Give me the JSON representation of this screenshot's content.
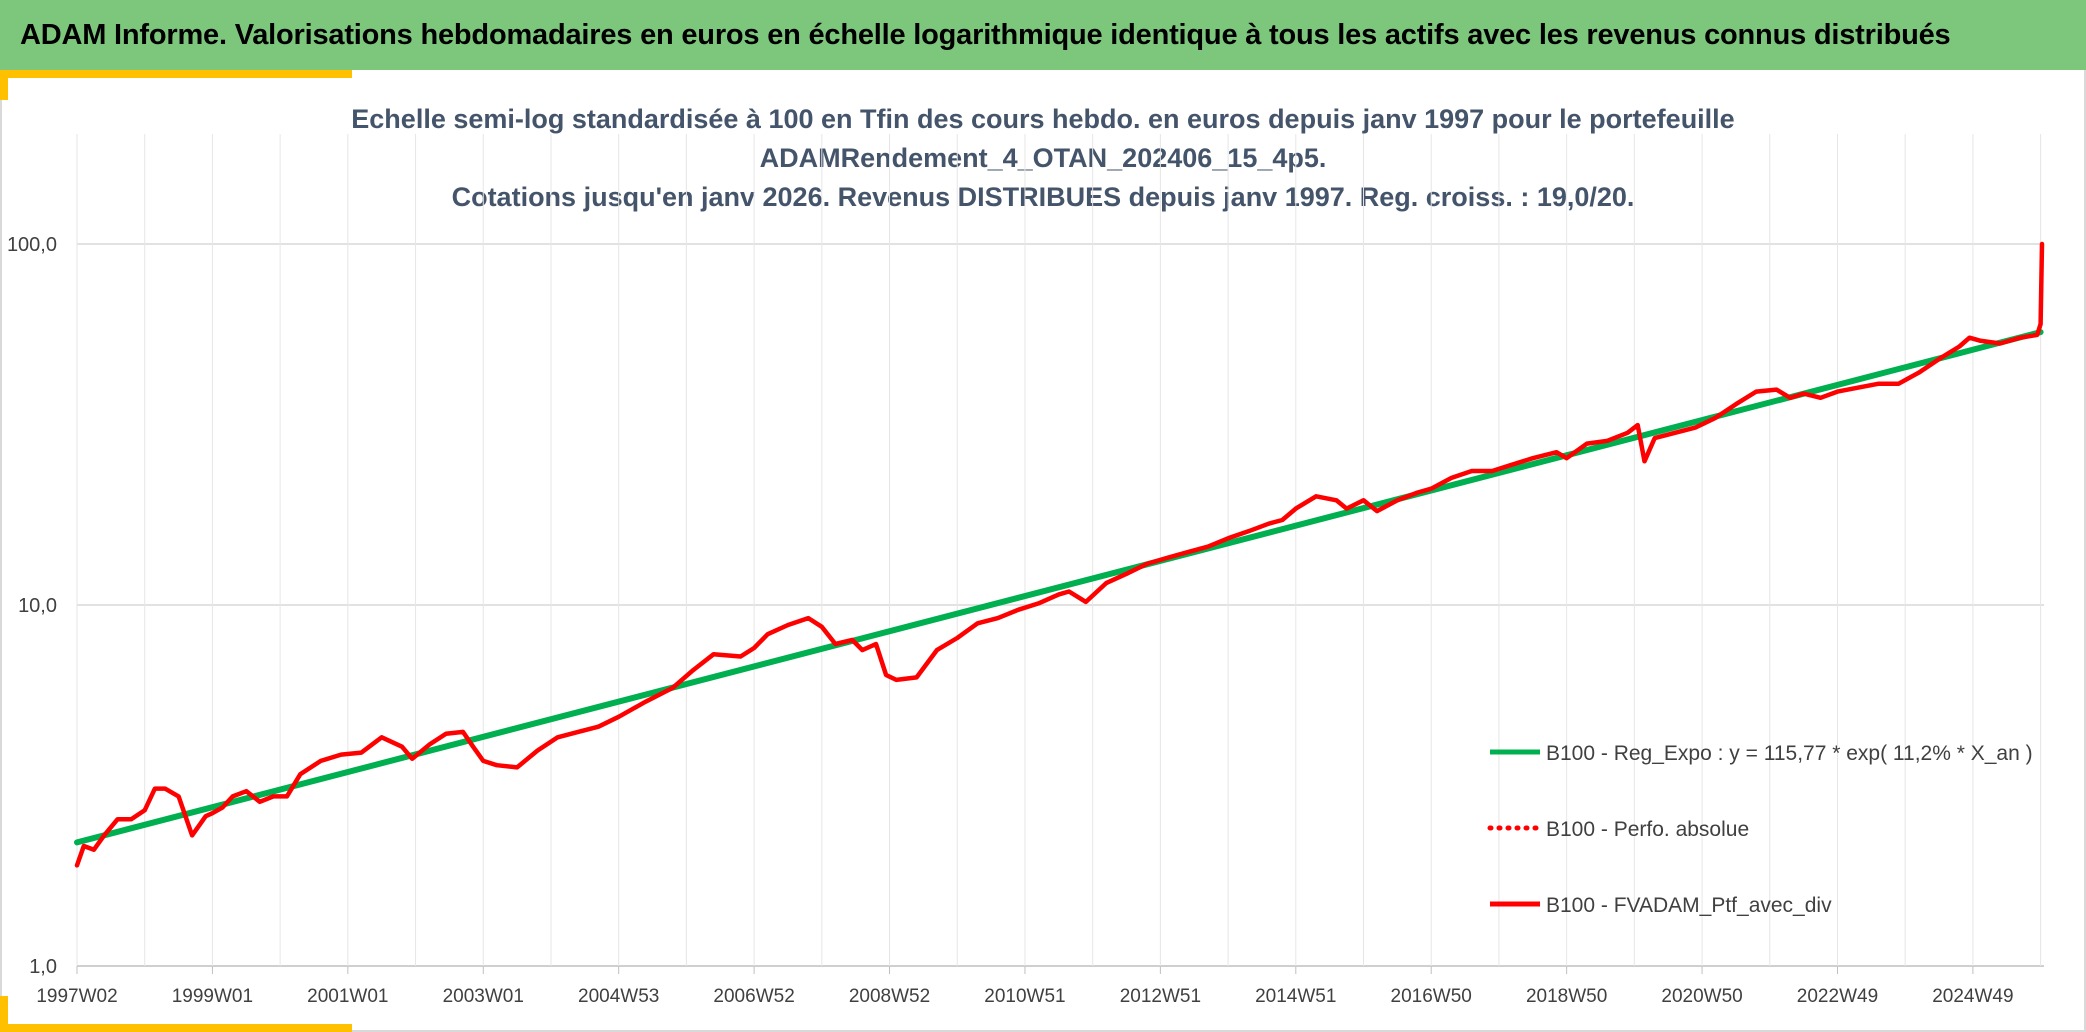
{
  "header": {
    "title": "ADAM Informe. Valorisations hebdomadaires en euros en échelle logarithmique identique à tous les actifs avec les revenus connus distribués"
  },
  "colors": {
    "banner": "#7dc77d",
    "accent": "#ffc000",
    "title_text": "#44546a",
    "regression": "#00b050",
    "portfolio": "#ff0000"
  },
  "chart_data": {
    "type": "line",
    "title_lines": [
      "Echelle semi-log standardisée à 100 en Tfin des cours hebdo. en euros depuis janv 1997 pour le portefeuille",
      "ADAMRendement_4_OTAN_202406_15_4p5.",
      "Cotations jusqu'en janv 2026. Revenus DISTRIBUES depuis janv 1997. Reg. croiss. : 19,0/20."
    ],
    "y_scale": "log",
    "ylim": [
      1,
      100
    ],
    "y_ticks": [
      {
        "value": 1,
        "label": "1,0"
      },
      {
        "value": 10,
        "label": "10,0"
      },
      {
        "value": 100,
        "label": "100,0"
      }
    ],
    "xlim": [
      1997.0,
      2026.05
    ],
    "x_ticks": [
      {
        "value": 1997.0,
        "label": "1997W02"
      },
      {
        "value": 1999.0,
        "label": "1999W01"
      },
      {
        "value": 2001.0,
        "label": "2001W01"
      },
      {
        "value": 2003.0,
        "label": "2003W01"
      },
      {
        "value": 2005.0,
        "label": "2004W53"
      },
      {
        "value": 2007.0,
        "label": "2006W52"
      },
      {
        "value": 2009.0,
        "label": "2008W52"
      },
      {
        "value": 2011.0,
        "label": "2010W51"
      },
      {
        "value": 2013.0,
        "label": "2012W51"
      },
      {
        "value": 2015.0,
        "label": "2014W51"
      },
      {
        "value": 2017.0,
        "label": "2016W50"
      },
      {
        "value": 2019.0,
        "label": "2018W50"
      },
      {
        "value": 2021.0,
        "label": "2020W50"
      },
      {
        "value": 2023.0,
        "label": "2022W49"
      },
      {
        "value": 2025.0,
        "label": "2024W49"
      }
    ],
    "grid": true,
    "legend_position": "right",
    "series": [
      {
        "name": "B100 - Reg_Expo : y = 115,77 * exp( 11,2% *  X_an )",
        "color": "#00b050",
        "style": "solid",
        "x": [
          1997.0,
          2026.0
        ],
        "y": [
          2.2,
          57.0
        ]
      },
      {
        "name": "B100 - Perfo. absolue",
        "color": "#ff0000",
        "style": "dotted",
        "x": [],
        "y": []
      },
      {
        "name": "B100 - FVADAM_Ptf_avec_div",
        "color": "#ff0000",
        "style": "solid",
        "x": [
          1997.0,
          1997.1,
          1997.25,
          1997.4,
          1997.6,
          1997.8,
          1998.0,
          1998.15,
          1998.3,
          1998.5,
          1998.7,
          1998.9,
          1999.0,
          1999.15,
          1999.3,
          1999.5,
          1999.7,
          1999.9,
          2000.1,
          2000.3,
          2000.6,
          2000.9,
          2001.2,
          2001.5,
          2001.8,
          2001.95,
          2002.2,
          2002.45,
          2002.7,
          2002.85,
          2003.0,
          2003.2,
          2003.5,
          2003.8,
          2004.1,
          2004.4,
          2004.7,
          2005.0,
          2005.4,
          2005.8,
          2006.1,
          2006.4,
          2006.8,
          2007.0,
          2007.2,
          2007.5,
          2007.8,
          2008.0,
          2008.2,
          2008.45,
          2008.6,
          2008.8,
          2008.95,
          2009.1,
          2009.4,
          2009.7,
          2010.0,
          2010.3,
          2010.6,
          2010.9,
          2011.2,
          2011.5,
          2011.65,
          2011.9,
          2012.2,
          2012.5,
          2012.8,
          2013.1,
          2013.4,
          2013.7,
          2014.0,
          2014.3,
          2014.6,
          2014.8,
          2015.0,
          2015.3,
          2015.6,
          2015.75,
          2016.0,
          2016.2,
          2016.5,
          2016.8,
          2017.0,
          2017.3,
          2017.6,
          2017.9,
          2018.2,
          2018.5,
          2018.85,
          2019.0,
          2019.3,
          2019.6,
          2019.9,
          2020.05,
          2020.15,
          2020.3,
          2020.6,
          2020.9,
          2021.2,
          2021.5,
          2021.8,
          2022.1,
          2022.3,
          2022.5,
          2022.75,
          2023.0,
          2023.3,
          2023.6,
          2023.9,
          2024.2,
          2024.5,
          2024.8,
          2024.95,
          2025.1,
          2025.4,
          2025.7,
          2025.95,
          2026.0,
          2026.02
        ],
        "y": [
          1.9,
          2.15,
          2.1,
          2.3,
          2.55,
          2.55,
          2.7,
          3.1,
          3.1,
          2.95,
          2.3,
          2.6,
          2.65,
          2.75,
          2.95,
          3.05,
          2.85,
          2.95,
          2.95,
          3.4,
          3.7,
          3.85,
          3.9,
          4.3,
          4.05,
          3.75,
          4.1,
          4.4,
          4.45,
          4.05,
          3.7,
          3.6,
          3.55,
          3.95,
          4.3,
          4.45,
          4.6,
          4.9,
          5.4,
          5.9,
          6.6,
          7.3,
          7.2,
          7.6,
          8.3,
          8.8,
          9.2,
          8.7,
          7.8,
          8.0,
          7.5,
          7.8,
          6.4,
          6.2,
          6.3,
          7.5,
          8.1,
          8.9,
          9.2,
          9.7,
          10.1,
          10.7,
          10.9,
          10.2,
          11.5,
          12.2,
          13.0,
          13.5,
          14.0,
          14.5,
          15.3,
          16.0,
          16.8,
          17.2,
          18.5,
          20.0,
          19.5,
          18.5,
          19.5,
          18.2,
          19.5,
          20.5,
          21.0,
          22.5,
          23.5,
          23.5,
          24.5,
          25.5,
          26.5,
          25.5,
          28.0,
          28.5,
          30.0,
          31.5,
          25.0,
          29.0,
          30.0,
          31.0,
          33.0,
          36.0,
          39.0,
          39.5,
          37.5,
          38.5,
          37.5,
          39.0,
          40.0,
          41.0,
          41.0,
          44.0,
          48.0,
          52.0,
          55.0,
          54.0,
          53.0,
          55.0,
          56.0,
          60.0,
          100.0
        ]
      }
    ]
  }
}
